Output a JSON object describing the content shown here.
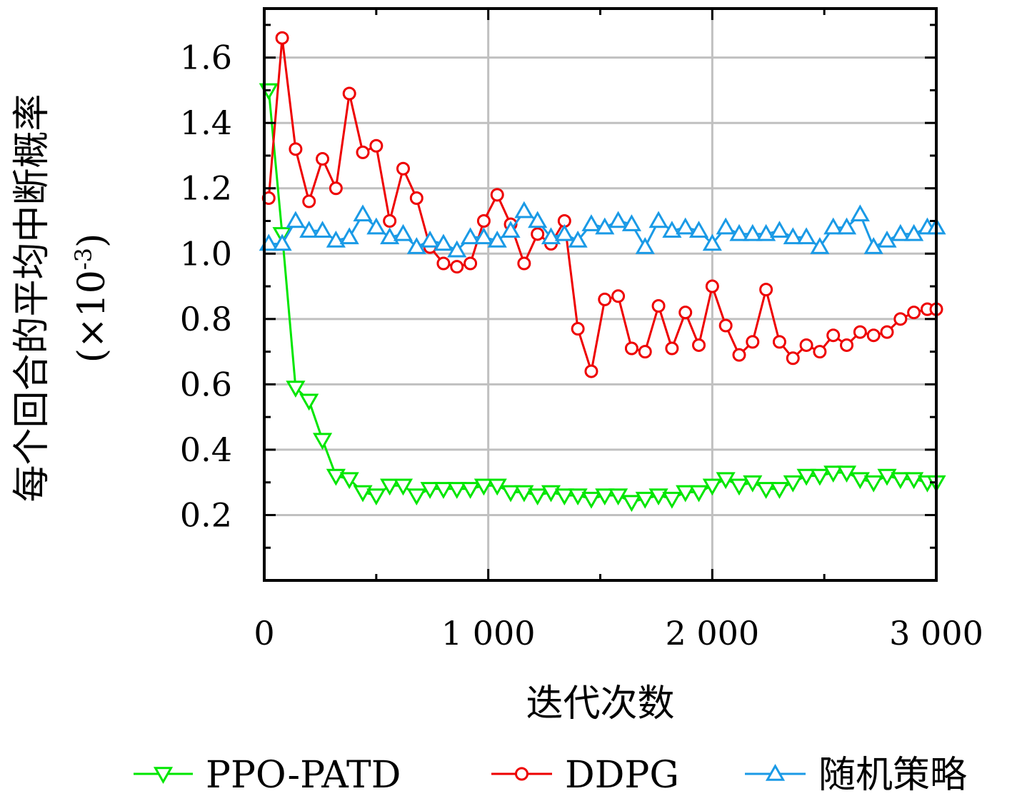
{
  "chart_data": {
    "type": "line",
    "xlabel": "迭代次数",
    "ylabel_line1": "每个回合的平均中断概率",
    "ylabel_line2_prefix": "(×10",
    "ylabel_line2_exp": "-3",
    "ylabel_line2_suffix": ")",
    "xlim": [
      0,
      3000
    ],
    "ylim": [
      0,
      1.75
    ],
    "x_ticks": [
      0,
      1000,
      2000,
      3000
    ],
    "x_tick_labels": [
      "0",
      "1 000",
      "2 000",
      "3 000"
    ],
    "y_ticks": [
      0.2,
      0.4,
      0.6,
      0.8,
      1.0,
      1.2,
      1.4,
      1.6
    ],
    "y_tick_labels": [
      "0.2",
      "0.4",
      "0.6",
      "0.8",
      "1.0",
      "1.2",
      "1.4",
      "1.6"
    ],
    "grid": true,
    "legend_position": "bottom",
    "series": [
      {
        "name": "PPO-PATD",
        "color": "#00e600",
        "marker": "triangle-down",
        "x": [
          20,
          80,
          140,
          200,
          260,
          320,
          380,
          440,
          500,
          560,
          620,
          680,
          740,
          800,
          860,
          920,
          980,
          1040,
          1100,
          1160,
          1220,
          1280,
          1340,
          1400,
          1460,
          1520,
          1580,
          1640,
          1700,
          1760,
          1820,
          1880,
          1940,
          2000,
          2060,
          2120,
          2180,
          2240,
          2300,
          2360,
          2420,
          2480,
          2540,
          2600,
          2660,
          2720,
          2780,
          2840,
          2900,
          2960,
          3000
        ],
        "values": [
          1.5,
          1.06,
          0.59,
          0.55,
          0.43,
          0.32,
          0.31,
          0.27,
          0.26,
          0.29,
          0.29,
          0.26,
          0.28,
          0.28,
          0.28,
          0.28,
          0.29,
          0.29,
          0.27,
          0.27,
          0.26,
          0.27,
          0.26,
          0.26,
          0.25,
          0.26,
          0.26,
          0.24,
          0.25,
          0.26,
          0.25,
          0.27,
          0.27,
          0.29,
          0.31,
          0.29,
          0.3,
          0.28,
          0.28,
          0.3,
          0.32,
          0.32,
          0.33,
          0.33,
          0.31,
          0.3,
          0.32,
          0.31,
          0.31,
          0.3,
          0.3
        ]
      },
      {
        "name": "DDPG",
        "color": "#ee0000",
        "marker": "circle",
        "x": [
          20,
          80,
          140,
          200,
          260,
          320,
          380,
          440,
          500,
          560,
          620,
          680,
          740,
          800,
          860,
          920,
          980,
          1040,
          1100,
          1160,
          1220,
          1280,
          1340,
          1400,
          1460,
          1520,
          1580,
          1640,
          1700,
          1760,
          1820,
          1880,
          1940,
          2000,
          2060,
          2120,
          2180,
          2240,
          2300,
          2360,
          2420,
          2480,
          2540,
          2600,
          2660,
          2720,
          2780,
          2840,
          2900,
          2960,
          3000
        ],
        "values": [
          1.17,
          1.66,
          1.32,
          1.16,
          1.29,
          1.2,
          1.49,
          1.31,
          1.33,
          1.1,
          1.26,
          1.17,
          1.02,
          0.97,
          0.96,
          0.97,
          1.1,
          1.18,
          1.09,
          0.97,
          1.06,
          1.03,
          1.1,
          0.77,
          0.64,
          0.86,
          0.87,
          0.71,
          0.7,
          0.84,
          0.71,
          0.82,
          0.72,
          0.9,
          0.78,
          0.69,
          0.73,
          0.89,
          0.73,
          0.68,
          0.72,
          0.7,
          0.75,
          0.72,
          0.76,
          0.75,
          0.76,
          0.8,
          0.82,
          0.83,
          0.83
        ]
      },
      {
        "name": "随机策略",
        "color": "#1a9ae6",
        "marker": "triangle-up",
        "x": [
          20,
          80,
          140,
          200,
          260,
          320,
          380,
          440,
          500,
          560,
          620,
          680,
          740,
          800,
          860,
          920,
          980,
          1040,
          1100,
          1160,
          1220,
          1280,
          1340,
          1400,
          1460,
          1520,
          1580,
          1640,
          1700,
          1760,
          1820,
          1880,
          1940,
          2000,
          2060,
          2120,
          2180,
          2240,
          2300,
          2360,
          2420,
          2480,
          2540,
          2600,
          2660,
          2720,
          2780,
          2840,
          2900,
          2960,
          3000
        ],
        "values": [
          1.03,
          1.03,
          1.1,
          1.07,
          1.07,
          1.04,
          1.05,
          1.12,
          1.08,
          1.05,
          1.06,
          1.02,
          1.04,
          1.03,
          1.01,
          1.05,
          1.05,
          1.04,
          1.07,
          1.13,
          1.1,
          1.05,
          1.06,
          1.04,
          1.09,
          1.08,
          1.1,
          1.09,
          1.02,
          1.1,
          1.07,
          1.08,
          1.07,
          1.03,
          1.08,
          1.06,
          1.06,
          1.06,
          1.07,
          1.05,
          1.05,
          1.02,
          1.08,
          1.08,
          1.12,
          1.02,
          1.04,
          1.06,
          1.06,
          1.08,
          1.08
        ]
      }
    ]
  }
}
